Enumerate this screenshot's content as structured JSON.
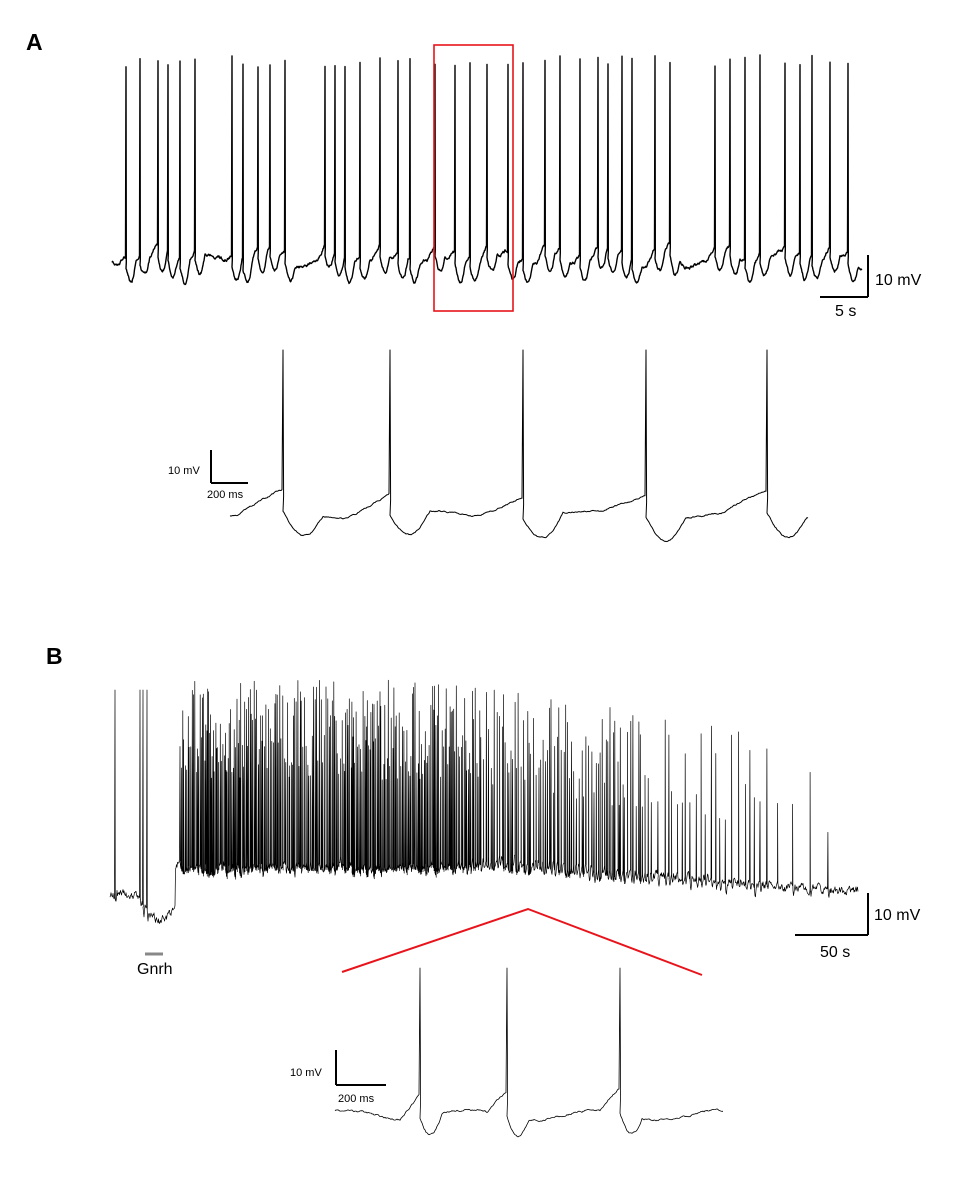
{
  "panels": [
    {
      "label": "A",
      "trace_scale": {
        "voltage": "10 mV",
        "time": "5 s"
      },
      "inset_scale": {
        "voltage": "10 mV",
        "time": "200 ms"
      }
    },
    {
      "label": "B",
      "trace_scale": {
        "voltage": "10 mV",
        "time": "50 s"
      },
      "application": "Gnrh",
      "inset_scale": {
        "voltage": "10 mV",
        "time": "200 ms"
      }
    }
  ]
}
